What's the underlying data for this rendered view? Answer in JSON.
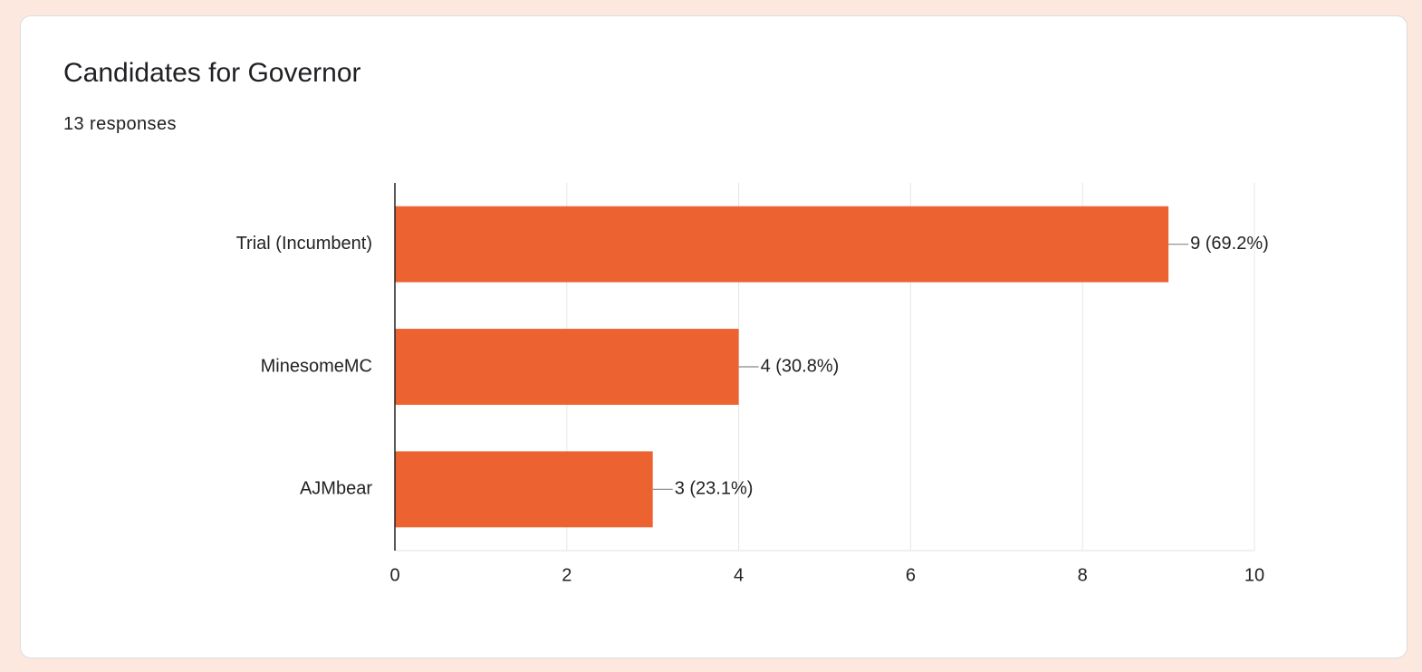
{
  "chart_data": {
    "type": "bar",
    "orientation": "horizontal",
    "title": "Candidates for Governor",
    "subtitle": "13 responses",
    "categories": [
      "Trial (Incumbent)",
      "MinesomeMC",
      "AJMbear"
    ],
    "values": [
      9,
      4,
      3
    ],
    "value_labels": [
      "9 (69.2%)",
      "4 (30.8%)",
      "3 (23.1%)"
    ],
    "color": "#ec6230",
    "xlim": [
      0,
      10
    ],
    "xticks": [
      0,
      2,
      4,
      6,
      8,
      10
    ],
    "grid": true
  }
}
